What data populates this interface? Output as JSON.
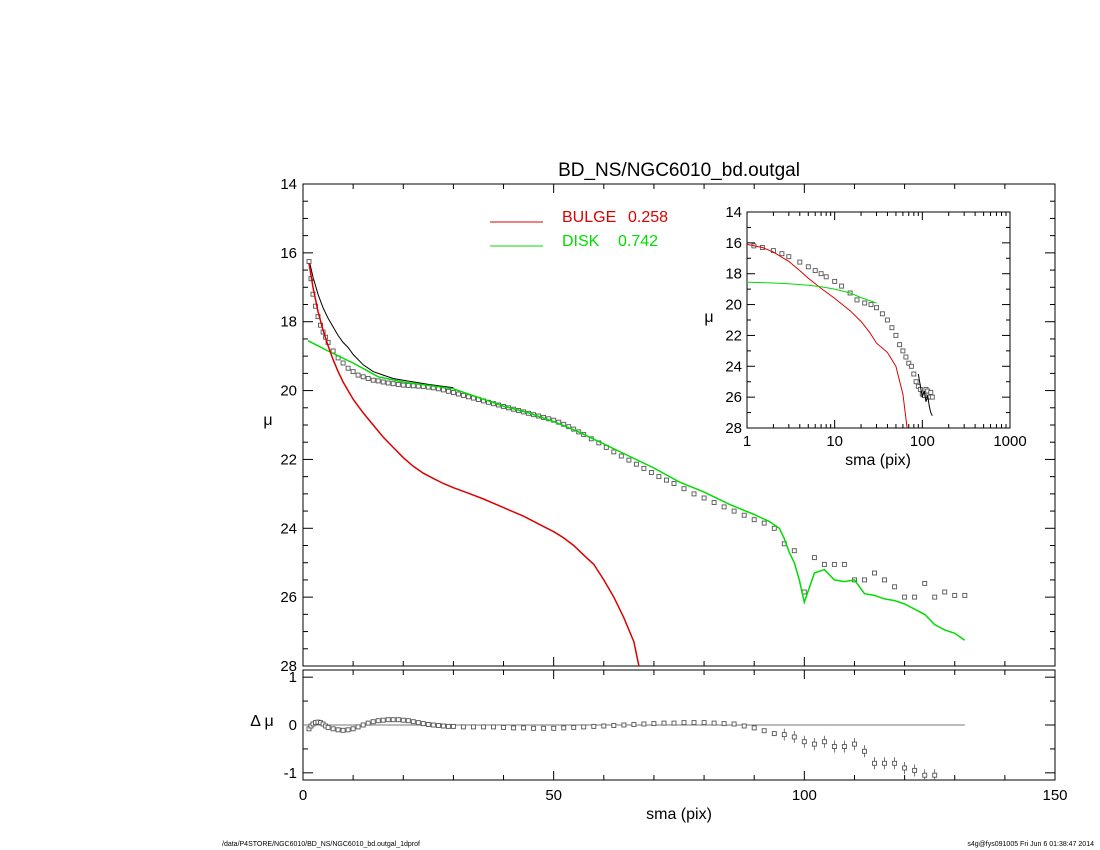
{
  "chart_data": [
    {
      "id": "main",
      "type": "line",
      "title": "BD_NS/NGC6010_bd.outgal",
      "xlabel": "",
      "ylabel": "μ",
      "xlim": [
        0,
        150
      ],
      "ylim": [
        28,
        14
      ],
      "xticks": [
        "0",
        "50",
        "100",
        "150"
      ],
      "yticks": [
        "14",
        "16",
        "18",
        "20",
        "22",
        "24",
        "26",
        "28"
      ],
      "legend_position": "top-center",
      "legend": [
        {
          "label": "BULGE",
          "value": "0.258",
          "color": "#dd0000"
        },
        {
          "label": "DISK",
          "value": "0.742",
          "color": "#00dd00"
        }
      ],
      "series": [
        {
          "name": "data",
          "kind": "square-points",
          "x": [
            1.2,
            1.6,
            2.0,
            2.5,
            3.0,
            3.5,
            4.0,
            4.5,
            5.0,
            6.0,
            7.0,
            8.0,
            9.0,
            10.0,
            11.0,
            12.0,
            13.0,
            14.0,
            15.0,
            16.0,
            17.0,
            18.0,
            19.0,
            20.0,
            21.0,
            22.0,
            23.0,
            24.0,
            25.0,
            26.0,
            27.0,
            28.0,
            29.0,
            30.0,
            31.0,
            32.0,
            33.0,
            34.0,
            35.0,
            36.0,
            37.0,
            38.0,
            39.0,
            40.0,
            41.0,
            42.0,
            43.0,
            44.0,
            45.0,
            46.0,
            47.0,
            48.0,
            49.0,
            50.0,
            51.0,
            52.0,
            53.0,
            54.0,
            55.0,
            56.0,
            57.5,
            59.0,
            60.5,
            62.0,
            63.5,
            65.0,
            66.5,
            68.0,
            69.5,
            71.0,
            72.5,
            74.0,
            76.0,
            78.0,
            80.0,
            82.0,
            84.0,
            86.0,
            88.0,
            90.0,
            92.0,
            94.0,
            96.0,
            98.0,
            100.0,
            102.0,
            104.0,
            106.0,
            108.0,
            110.0,
            112.0,
            114.0,
            116.0,
            118.0,
            120.0,
            122.0,
            124.0,
            126.0,
            128.0,
            130.0,
            132.0
          ],
          "y": [
            16.25,
            16.75,
            17.2,
            17.55,
            17.85,
            18.1,
            18.3,
            18.45,
            18.6,
            18.85,
            19.05,
            19.2,
            19.35,
            19.45,
            19.55,
            19.6,
            19.65,
            19.7,
            19.72,
            19.75,
            19.78,
            19.8,
            19.82,
            19.84,
            19.85,
            19.86,
            19.87,
            19.88,
            19.9,
            19.92,
            19.95,
            19.98,
            20.02,
            20.06,
            20.1,
            20.14,
            20.18,
            20.22,
            20.26,
            20.3,
            20.34,
            20.38,
            20.42,
            20.46,
            20.5,
            20.54,
            20.58,
            20.62,
            20.66,
            20.7,
            20.74,
            20.78,
            20.82,
            20.86,
            20.92,
            20.98,
            21.05,
            21.12,
            21.2,
            21.28,
            21.4,
            21.52,
            21.65,
            21.78,
            21.9,
            22.02,
            22.14,
            22.26,
            22.38,
            22.5,
            22.6,
            22.7,
            22.85,
            23.0,
            23.12,
            23.25,
            23.38,
            23.5,
            23.62,
            23.75,
            23.85,
            24.0,
            24.45,
            24.65,
            25.85,
            24.85,
            25.05,
            25.05,
            25.05,
            25.5,
            25.5,
            25.3,
            25.5,
            25.7,
            26.0,
            26.0,
            25.6,
            26.0,
            25.85,
            25.95,
            25.95
          ]
        },
        {
          "name": "BULGE",
          "kind": "line",
          "color": "#dd0000",
          "x": [
            1.2,
            2.0,
            3.0,
            4.0,
            5.0,
            6.0,
            7.0,
            8.0,
            9.0,
            10.0,
            12.0,
            14.0,
            16.0,
            18.0,
            20.0,
            22.0,
            24.0,
            26.0,
            28.0,
            30.0,
            33.0,
            36.0,
            40.0,
            44.0,
            48.0,
            50.0,
            52.0,
            54.0,
            56.0,
            58.0,
            60.0,
            62.0,
            64.0,
            66.0,
            67.0
          ],
          "y": [
            16.3,
            17.0,
            17.7,
            18.25,
            18.7,
            19.1,
            19.45,
            19.75,
            20.0,
            20.25,
            20.65,
            21.0,
            21.35,
            21.65,
            21.95,
            22.2,
            22.4,
            22.55,
            22.7,
            22.82,
            22.98,
            23.15,
            23.4,
            23.65,
            23.95,
            24.1,
            24.28,
            24.5,
            24.78,
            25.05,
            25.5,
            26.0,
            26.6,
            27.3,
            28.0
          ]
        },
        {
          "name": "DISK",
          "kind": "line",
          "color": "#00dd00",
          "x": [
            1.0,
            5.0,
            10.0,
            15.0,
            20.0,
            25.0,
            30.0,
            35.0,
            40.0,
            45.0,
            50.0,
            55.0,
            60.0,
            65.0,
            70.0,
            75.0,
            80.0,
            85.0,
            90.0,
            93.0,
            95.0,
            96.0,
            97.0,
            98.0,
            99.0,
            100.0,
            102.0,
            104.0,
            106.0,
            108.0,
            110.0,
            112.0,
            114.0,
            116.0,
            118.0,
            120.0,
            122.0,
            124.0,
            126.0,
            128.0,
            130.0,
            132.0
          ],
          "y": [
            18.55,
            18.85,
            19.2,
            19.6,
            19.75,
            19.85,
            19.95,
            20.2,
            20.45,
            20.65,
            20.9,
            21.2,
            21.55,
            21.9,
            22.25,
            22.65,
            22.95,
            23.3,
            23.6,
            23.8,
            24.0,
            24.3,
            24.7,
            25.0,
            25.5,
            26.15,
            25.3,
            25.2,
            25.5,
            25.55,
            25.5,
            25.9,
            25.95,
            26.05,
            26.1,
            26.2,
            26.35,
            26.5,
            26.8,
            26.95,
            27.05,
            27.25
          ]
        },
        {
          "name": "total",
          "kind": "line",
          "color": "#000000",
          "x": [
            1.2,
            2.0,
            3.0,
            4.0,
            5.0,
            6.0,
            7.0,
            8.0,
            9.0,
            10.0,
            12.0,
            14.0,
            16.0,
            18.0,
            20.0,
            25.0,
            30.0
          ],
          "y": [
            16.2,
            16.7,
            17.2,
            17.6,
            17.9,
            18.15,
            18.4,
            18.6,
            18.75,
            18.95,
            19.25,
            19.45,
            19.55,
            19.65,
            19.7,
            19.82,
            19.92
          ]
        }
      ]
    },
    {
      "id": "inset",
      "type": "line",
      "xscale": "log",
      "xlabel": "sma (pix)",
      "ylabel": "μ",
      "xlim": [
        1,
        1000
      ],
      "ylim": [
        28,
        14
      ],
      "xticks": [
        "1",
        "10",
        "100",
        "1000"
      ],
      "yticks": [
        "14",
        "16",
        "18",
        "20",
        "22",
        "24",
        "26",
        "28"
      ],
      "series": [
        {
          "name": "data",
          "kind": "square-points",
          "x": [
            1.2,
            1.5,
            2.0,
            2.5,
            3.0,
            4.0,
            5.0,
            6.0,
            7.0,
            8.0,
            10.0,
            12.0,
            15.0,
            18.0,
            22.0,
            26.0,
            30.0,
            35.0,
            40.0,
            45.0,
            50.0,
            55.0,
            60.0,
            65.0,
            70.0,
            75.0,
            80.0,
            85.0,
            90.0,
            95.0,
            100.0,
            105.0,
            110.0,
            115.0,
            120.0,
            125.0,
            130.0
          ],
          "y": [
            16.2,
            16.3,
            16.5,
            16.7,
            16.9,
            17.25,
            17.55,
            17.8,
            18.0,
            18.2,
            18.5,
            18.8,
            19.25,
            19.7,
            19.9,
            20.0,
            20.2,
            20.6,
            21.0,
            21.5,
            22.0,
            22.6,
            23.0,
            23.4,
            23.8,
            24.0,
            24.5,
            25.0,
            25.3,
            25.5,
            25.8,
            25.9,
            25.5,
            25.6,
            26.0,
            25.7,
            26.0
          ]
        },
        {
          "name": "BULGE",
          "kind": "line",
          "color": "#dd0000",
          "x": [
            1.0,
            1.5,
            2.0,
            3.0,
            4.0,
            5.0,
            7.0,
            10.0,
            15.0,
            20.0,
            25.0,
            30.0,
            40.0,
            50.0,
            60.0,
            67.0
          ],
          "y": [
            16.1,
            16.3,
            16.6,
            17.2,
            17.8,
            18.3,
            18.95,
            19.6,
            20.4,
            21.1,
            21.8,
            22.5,
            23.1,
            24.0,
            25.8,
            28.0
          ]
        },
        {
          "name": "DISK",
          "kind": "line",
          "color": "#00dd00",
          "x": [
            1.0,
            2.0,
            3.0,
            5.0,
            7.0,
            10.0,
            15.0,
            20.0,
            30.0
          ],
          "y": [
            18.55,
            18.6,
            18.65,
            18.75,
            18.85,
            19.0,
            19.25,
            19.55,
            19.9
          ]
        },
        {
          "name": "total",
          "kind": "line",
          "color": "#000000",
          "x": [
            90.0,
            95.0,
            100.0,
            105.0,
            110.0,
            115.0,
            120.0,
            125.0,
            130.0
          ],
          "y": [
            24.5,
            25.3,
            26.0,
            25.6,
            26.3,
            25.9,
            26.6,
            27.0,
            27.2
          ]
        }
      ]
    },
    {
      "id": "residual",
      "type": "scatter",
      "xlabel": "sma (pix)",
      "ylabel": "Δ μ",
      "xlim": [
        0,
        150
      ],
      "ylim": [
        -1.15,
        1.15
      ],
      "xticks": [
        "0",
        "50",
        "100",
        "150"
      ],
      "yticks": [
        "1",
        "0",
        "-1"
      ],
      "reference_line": 0,
      "series": [
        {
          "name": "residuals",
          "kind": "square-points",
          "x": [
            1.2,
            1.6,
            2.0,
            2.5,
            3.0,
            3.5,
            4.0,
            4.5,
            5.0,
            6.0,
            7.0,
            8.0,
            9.0,
            10.0,
            11.0,
            12.0,
            13.0,
            14.0,
            15.0,
            16.0,
            17.0,
            18.0,
            19.0,
            20.0,
            21.0,
            22.0,
            23.0,
            24.0,
            25.0,
            26.0,
            27.0,
            28.0,
            29.0,
            30.0,
            32.0,
            34.0,
            36.0,
            38.0,
            40.0,
            42.0,
            44.0,
            46.0,
            48.0,
            50.0,
            52.0,
            54.0,
            56.0,
            58.0,
            60.0,
            62.0,
            64.0,
            66.0,
            68.0,
            70.0,
            72.0,
            74.0,
            76.0,
            78.0,
            80.0,
            82.0,
            84.0,
            86.0,
            88.0,
            90.0,
            92.0,
            94.0,
            96.0,
            98.0,
            100.0,
            102.0,
            104.0,
            106.0,
            108.0,
            110.0,
            112.0,
            114.0,
            116.0,
            118.0,
            120.0,
            122.0,
            124.0,
            126.0
          ],
          "y": [
            -0.08,
            -0.02,
            0.02,
            0.05,
            0.06,
            0.05,
            0.02,
            -0.02,
            -0.05,
            -0.08,
            -0.1,
            -0.11,
            -0.1,
            -0.08,
            -0.04,
            0.0,
            0.04,
            0.07,
            0.09,
            0.1,
            0.11,
            0.11,
            0.11,
            0.1,
            0.09,
            0.07,
            0.05,
            0.03,
            0.01,
            0.0,
            -0.01,
            -0.02,
            -0.03,
            -0.03,
            -0.04,
            -0.04,
            -0.04,
            -0.04,
            -0.05,
            -0.06,
            -0.06,
            -0.07,
            -0.07,
            -0.07,
            -0.06,
            -0.05,
            -0.04,
            -0.03,
            -0.02,
            -0.01,
            0.0,
            0.01,
            0.02,
            0.03,
            0.04,
            0.04,
            0.05,
            0.05,
            0.05,
            0.04,
            0.03,
            0.02,
            -0.02,
            -0.06,
            -0.12,
            -0.18,
            -0.2,
            -0.25,
            -0.35,
            -0.4,
            -0.35,
            -0.45,
            -0.45,
            -0.4,
            -0.55,
            -0.8,
            -0.8,
            -0.8,
            -0.9,
            -0.95,
            -1.05,
            -1.05
          ]
        }
      ]
    }
  ],
  "footer": {
    "path": "/data/P4STORE/NGC6010/BD_NS/NGC6010_bd.outgal_1dprof",
    "stamp": "s4g@fys091005  Fri Jun  6 01:38:47 2014"
  }
}
